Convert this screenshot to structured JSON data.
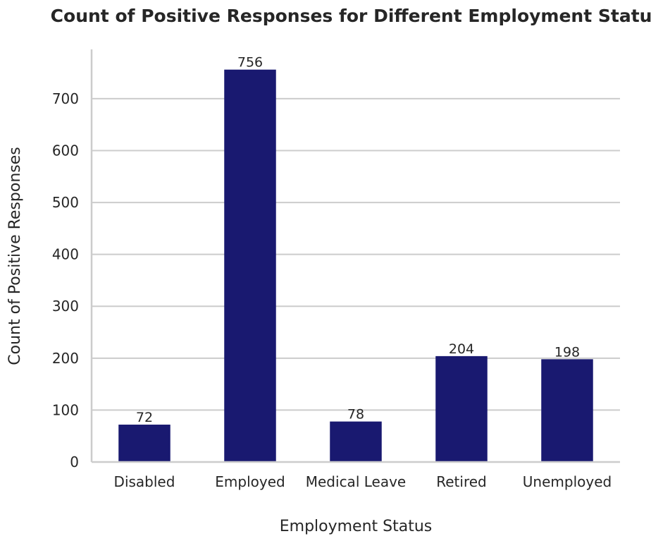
{
  "chart_data": {
    "type": "bar",
    "title": "Count of Positive Responses for Different Employment Status",
    "xlabel": "Employment Status",
    "ylabel": "Count of Positive Responses",
    "categories": [
      "Disabled",
      "Employed",
      "Medical Leave",
      "Retired",
      "Unemployed"
    ],
    "values": [
      72,
      756,
      78,
      204,
      198
    ],
    "data_labels": [
      "72",
      "756",
      "78",
      "204",
      "198"
    ],
    "ylim": [
      0,
      795
    ],
    "yticks": [
      0,
      100,
      200,
      300,
      400,
      500,
      600,
      700
    ],
    "grid": "y",
    "bar_color": "#191970"
  }
}
